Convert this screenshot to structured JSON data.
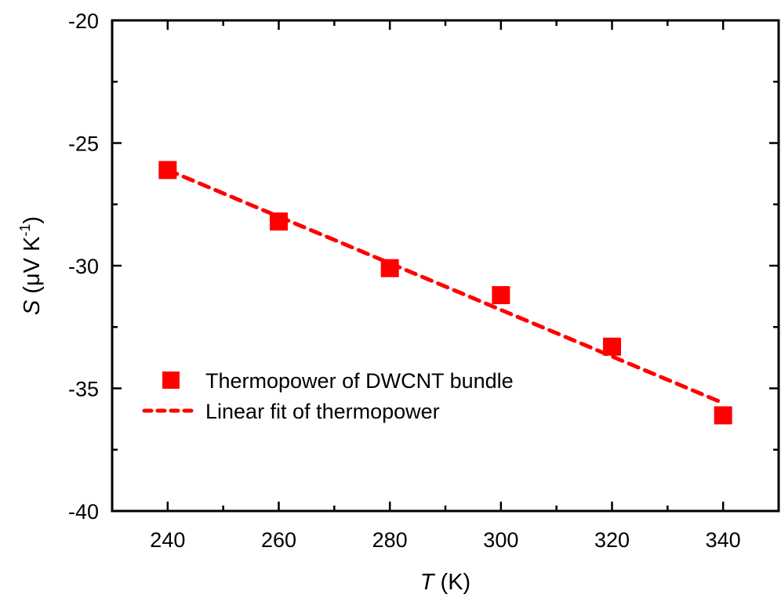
{
  "chart_data": {
    "type": "scatter",
    "title": "",
    "xlabel": {
      "italic": "T",
      "rest": " (K)"
    },
    "ylabel": {
      "italic": "S",
      "rest": " (μV K",
      "sup": "-1",
      "close": ")"
    },
    "xlim": [
      230,
      350
    ],
    "ylim": [
      -40,
      -20
    ],
    "x_major_ticks": [
      240,
      260,
      280,
      300,
      320,
      340
    ],
    "x_minor_ticks": [
      250,
      270,
      290,
      310,
      330
    ],
    "y_major_ticks": [
      -20,
      -25,
      -30,
      -35,
      -40
    ],
    "y_minor_ticks": [
      -22.5,
      -27.5,
      -32.5,
      -37.5
    ],
    "x_tick_labels": [
      "240",
      "260",
      "280",
      "300",
      "320",
      "340"
    ],
    "y_tick_labels": [
      "-20",
      "-25",
      "-30",
      "-35",
      "-40"
    ],
    "grid": false,
    "legend_position": "lower-left",
    "series": [
      {
        "name": "Thermopower of DWCNT bundle",
        "kind": "scatter",
        "marker": "square",
        "color": "#ff0000",
        "x": [
          240,
          260,
          280,
          300,
          320,
          340
        ],
        "y": [
          -26.1,
          -28.2,
          -30.1,
          -31.2,
          -33.3,
          -36.1
        ]
      },
      {
        "name": "Linear fit of thermopower",
        "kind": "line",
        "style": "dashed",
        "color": "#ff0000",
        "x": [
          240,
          340
        ],
        "y": [
          -26.1,
          -35.6
        ]
      }
    ]
  }
}
